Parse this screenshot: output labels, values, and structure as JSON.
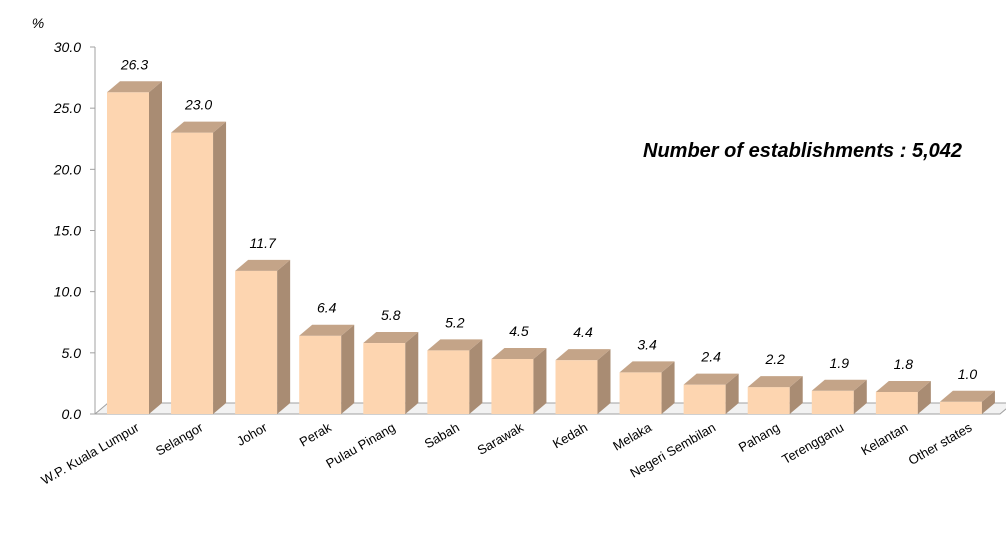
{
  "chart_data": {
    "type": "bar",
    "title": "",
    "xlabel": "",
    "ylabel": "%",
    "ylim": [
      0,
      30
    ],
    "yticks": [
      "0.0",
      "5.0",
      "10.0",
      "15.0",
      "20.0",
      "25.0",
      "30.0"
    ],
    "annotation": "Number of establishments : 5,042",
    "categories": [
      "W.P. Kuala Lumpur",
      "Selangor",
      "Johor",
      "Perak",
      "Pulau Pinang",
      "Sabah",
      "Sarawak",
      "Kedah",
      "Melaka",
      "Negeri Sembilan",
      "Pahang",
      "Terengganu",
      "Kelantan",
      "Other states"
    ],
    "values": [
      26.3,
      23.0,
      11.7,
      6.4,
      5.8,
      5.2,
      4.5,
      4.4,
      3.4,
      2.4,
      2.2,
      1.9,
      1.8,
      1.0
    ],
    "value_labels": [
      "26.3",
      "23.0",
      "11.7",
      "6.4",
      "5.8",
      "5.2",
      "4.5",
      "4.4",
      "3.4",
      "2.4",
      "2.2",
      "1.9",
      "1.8",
      "1.0"
    ],
    "colors": {
      "bar_front": "#FDD5B0",
      "bar_side": "#A98C73",
      "bar_top": "#C4A488",
      "axis": "#A0A0A0"
    }
  }
}
